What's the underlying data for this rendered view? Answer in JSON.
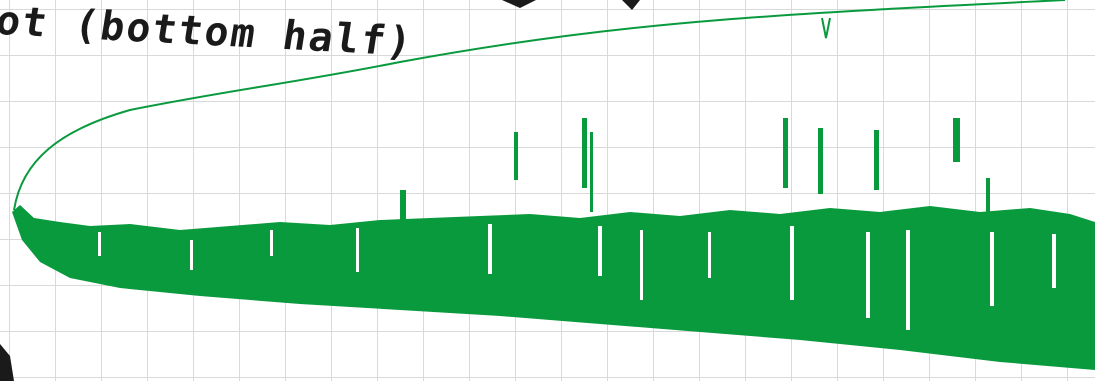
{
  "title": "ot (bottom half)",
  "colors": {
    "ink": "#1a1a1a",
    "green": "#0a9a3e",
    "grid": "#d9d9d9",
    "paper": "#ffffff"
  }
}
